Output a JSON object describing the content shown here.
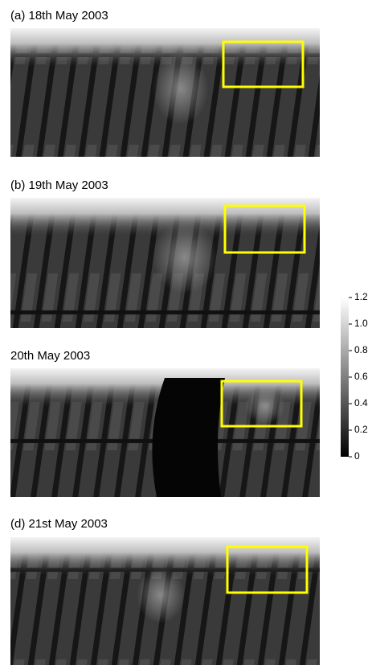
{
  "panels": [
    {
      "title": "(a) 18th May 2003"
    },
    {
      "title": "(b) 19th May 2003"
    },
    {
      "title": "20th May 2003"
    },
    {
      "title": "(d) 21st May 2003"
    }
  ],
  "colorbar": {
    "range": [
      0,
      1.2
    ],
    "ticks": [
      0,
      0.2,
      0.4,
      0.6,
      0.8,
      {
        "value": 1,
        "label": "1.0"
      },
      1.2
    ]
  }
}
